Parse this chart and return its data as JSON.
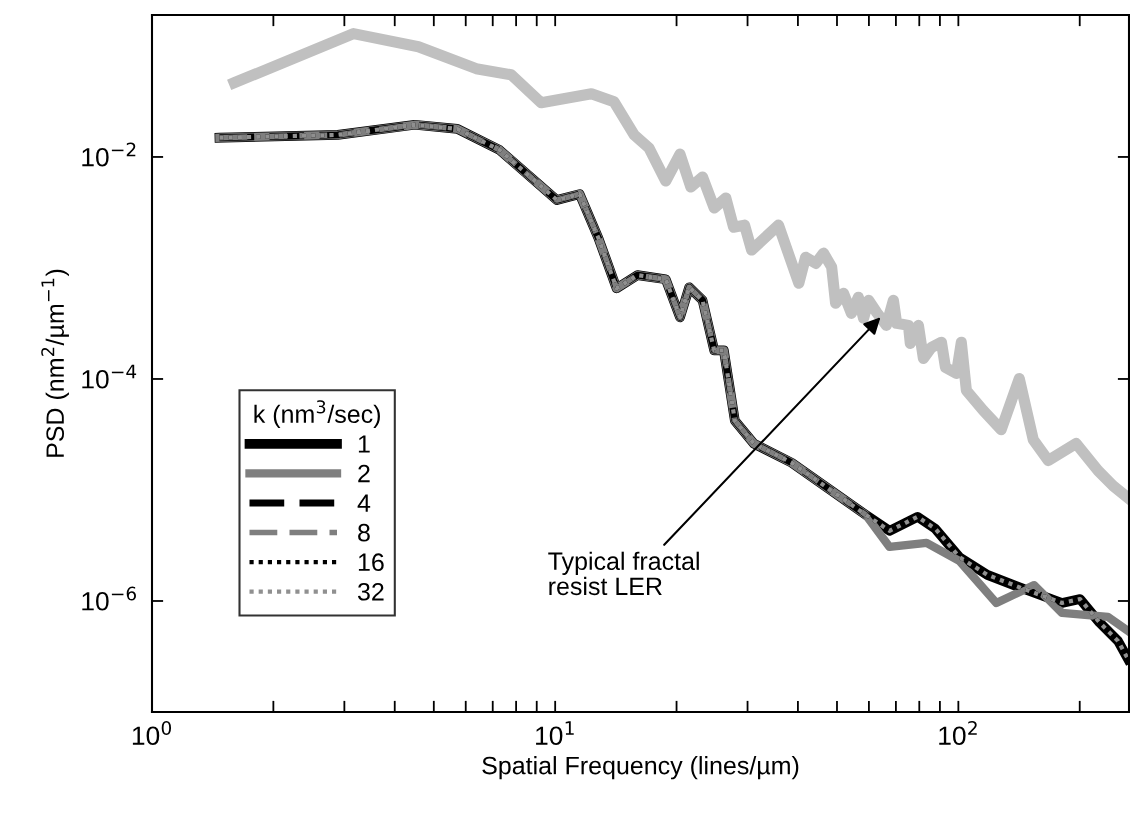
{
  "chart_data": {
    "type": "line",
    "xlabel": "Spatial Frequency (lines/µm)",
    "ylabel": "PSD (nm$^{2}$/µm$^{−1}$)",
    "legend_title": "k (nm$^{3}$/sec)",
    "log": "xy",
    "grid": false,
    "legend": "center left",
    "marker": "none",
    "xlim": [
      1,
      265
    ],
    "ylim": [
      1e-07,
      0.19
    ],
    "xticks": [
      {
        "value": 1,
        "label": "10$^{0}$"
      },
      {
        "value": 2,
        "label": null
      },
      {
        "value": 3,
        "label": null
      },
      {
        "value": 4,
        "label": null
      },
      {
        "value": 5,
        "label": null
      },
      {
        "value": 6,
        "label": null
      },
      {
        "value": 7,
        "label": null
      },
      {
        "value": 8,
        "label": null
      },
      {
        "value": 9,
        "label": null
      },
      {
        "value": 10,
        "label": "10$^{1}$"
      },
      {
        "value": 20,
        "label": null
      },
      {
        "value": 30,
        "label": null
      },
      {
        "value": 40,
        "label": null
      },
      {
        "value": 50,
        "label": null
      },
      {
        "value": 60,
        "label": null
      },
      {
        "value": 70,
        "label": null
      },
      {
        "value": 80,
        "label": null
      },
      {
        "value": 90,
        "label": null
      },
      {
        "value": 100,
        "label": "10$^{2}$"
      },
      {
        "value": 200,
        "label": null
      }
    ],
    "yticks": [
      {
        "value": 1e-06,
        "label": "10$^{−6}$"
      },
      {
        "value": 0.0001,
        "label": "10$^{−4}$"
      },
      {
        "value": 0.01,
        "label": "10$^{−2}$"
      }
    ],
    "annotations": [
      {
        "text": "Typical fractal\nresist LER",
        "x": 64.1,
        "y": 0.00036
      }
    ],
    "series": [
      {
        "color": "#c0c0c0",
        "line_style": "solid",
        "x": [
          1.6,
          3.16,
          4.58,
          6.37,
          7.78,
          9.23,
          12.3,
          14.0,
          15.7,
          17.1,
          18.8,
          20.4,
          21.7,
          23.2,
          24.8,
          26.5,
          27.7,
          29.5,
          30.7,
          35.8,
          40.2,
          41.8,
          44.3,
          46.3,
          48.5,
          49.6,
          51.9,
          54.3,
          56.5,
          58.2,
          59.9,
          62.7,
          66.3,
          69.0,
          70.3,
          75.2,
          76.0,
          79.6,
          81.9,
          85.7,
          90.8,
          92.9,
          98.9,
          101.7,
          104.7,
          115.3,
          127.7,
          141.6,
          153.4,
          167.1,
          195.9,
          222.2,
          242.1,
          263.6
        ],
        "values": [
          0.0466,
          0.129,
          0.0984,
          0.0624,
          0.055,
          0.0308,
          0.0371,
          0.0314,
          0.0158,
          0.012,
          0.00607,
          0.0106,
          0.00536,
          0.00659,
          0.00347,
          0.00427,
          0.00233,
          0.00243,
          0.00145,
          0.00243,
          0.000728,
          0.00125,
          0.0011,
          0.00136,
          0.00102,
          0.000481,
          0.000592,
          0.00039,
          0.000545,
          0.000352,
          0.000512,
          0.000398,
          0.000304,
          0.000512,
          0.000317,
          0.000304,
          0.000209,
          0.000304,
          0.000153,
          0.000192,
          0.000214,
          0.000127,
          0.000112,
          0.000214,
          7.87e-05,
          5.2e-05,
          3.5e-05,
          0.000101,
          2.84e-05,
          1.84e-05,
          2.62e-05,
          1.49e-05,
          1.09e-05,
          8.5e-06
        ]
      },
      {
        "name": "1",
        "color": "#000000",
        "line_style": "solid",
        "x": [
          1.47,
          2.89,
          4.48,
          5.72,
          7.27,
          10.1,
          11.5,
          12.8,
          14.2,
          16.0,
          18.8,
          20.4,
          21.5,
          23.2,
          24.8,
          26.2,
          27.9,
          31.1,
          38.6,
          58.9,
          67.5,
          79.2,
          87.7,
          100.5,
          118.0,
          145.6,
          180.8,
          200.4,
          223.4,
          248.9,
          263.6
        ],
        "values": [
          0.0149,
          0.0158,
          0.0195,
          0.0179,
          0.0116,
          0.00409,
          0.00463,
          0.00186,
          0.000656,
          0.000861,
          0.000791,
          0.000359,
          0.00067,
          0.000512,
          0.000181,
          0.000181,
          4.22e-05,
          2.62e-05,
          1.76e-05,
          5.98e-06,
          4.29e-06,
          5.73e-06,
          4.47e-06,
          2.49e-06,
          1.72e-06,
          1.28e-06,
          9.6e-07,
          1.04e-06,
          6.46e-07,
          4.36e-07,
          2.99e-07
        ]
      },
      {
        "name": "2",
        "color": "#7f7f7f",
        "line_style": "solid",
        "x": [
          1.47,
          2.89,
          4.48,
          5.72,
          7.27,
          10.1,
          11.5,
          12.8,
          14.2,
          16.0,
          18.8,
          20.4,
          21.5,
          23.2,
          24.8,
          26.2,
          27.9,
          31.1,
          38.6,
          58.9,
          67.5,
          83.4,
          100.5,
          124.2,
          154.2,
          180.8,
          235.0,
          263.6
        ],
        "values": [
          0.0149,
          0.0158,
          0.0195,
          0.0179,
          0.0116,
          0.00409,
          0.00463,
          0.00186,
          0.000656,
          0.000861,
          0.000791,
          0.000359,
          0.00067,
          0.000512,
          0.000181,
          0.000181,
          4.22e-05,
          2.62e-05,
          1.76e-05,
          5.98e-06,
          3.07e-06,
          3.34e-06,
          2.3e-06,
          9.6e-07,
          1.39e-06,
          7.8e-07,
          7.18e-07,
          5.36e-07
        ]
      },
      {
        "name": "4",
        "color": "#000000",
        "line_style": "dashed",
        "x": [
          1.47,
          2.89,
          4.48,
          5.72,
          7.27,
          10.1,
          11.5,
          12.8,
          14.2,
          16.0,
          18.8,
          20.4,
          21.5,
          23.2,
          24.8,
          26.2,
          27.9,
          31.1,
          38.6,
          58.9,
          67.5,
          79.2,
          87.7,
          100.5,
          118.0,
          145.6,
          180.8,
          200.4,
          223.4,
          248.9,
          263.6
        ],
        "values": [
          0.0149,
          0.0158,
          0.0195,
          0.0179,
          0.0116,
          0.00409,
          0.00463,
          0.00186,
          0.000656,
          0.000861,
          0.000791,
          0.000359,
          0.00067,
          0.000512,
          0.000181,
          0.000181,
          4.22e-05,
          2.62e-05,
          1.76e-05,
          5.98e-06,
          4.29e-06,
          5.73e-06,
          4.47e-06,
          2.49e-06,
          1.72e-06,
          1.28e-06,
          9.6e-07,
          1.04e-06,
          6.46e-07,
          4.36e-07,
          2.99e-07
        ]
      },
      {
        "name": "8",
        "color": "#7f7f7f",
        "line_style": "dashed",
        "x": [
          1.47,
          2.89,
          4.48,
          5.72,
          7.27,
          10.1,
          11.5,
          12.8,
          14.2,
          16.0,
          18.8,
          20.4,
          21.5,
          23.2,
          24.8,
          26.2,
          27.9,
          31.1,
          38.6,
          58.9,
          67.5,
          83.4,
          100.5,
          124.2,
          154.2,
          180.8,
          235.0,
          263.6
        ],
        "values": [
          0.0149,
          0.0158,
          0.0195,
          0.0179,
          0.0116,
          0.00409,
          0.00463,
          0.00186,
          0.000656,
          0.000861,
          0.000791,
          0.000359,
          0.00067,
          0.000512,
          0.000181,
          0.000181,
          4.22e-05,
          2.62e-05,
          1.76e-05,
          5.98e-06,
          3.07e-06,
          3.34e-06,
          2.3e-06,
          9.6e-07,
          1.39e-06,
          7.8e-07,
          7.18e-07,
          5.36e-07
        ]
      },
      {
        "name": "16",
        "color": "#000000",
        "line_style": "dotted",
        "x": [
          1.47,
          2.89,
          4.48,
          5.72,
          7.27,
          10.1,
          11.5,
          12.8,
          14.2,
          16.0,
          18.8,
          20.4,
          21.5,
          23.2,
          24.8,
          26.2,
          27.9,
          31.1,
          38.6,
          58.9,
          67.5,
          79.2,
          87.7,
          100.5,
          118.0,
          145.6,
          180.8,
          200.4,
          223.4,
          248.9,
          263.6
        ],
        "values": [
          0.0149,
          0.0158,
          0.0195,
          0.0179,
          0.0116,
          0.00409,
          0.00463,
          0.00186,
          0.000656,
          0.000861,
          0.000791,
          0.000359,
          0.00067,
          0.000512,
          0.000181,
          0.000181,
          4.22e-05,
          2.62e-05,
          1.76e-05,
          5.98e-06,
          4.29e-06,
          5.73e-06,
          4.47e-06,
          2.49e-06,
          1.72e-06,
          1.28e-06,
          9.6e-07,
          1.04e-06,
          6.46e-07,
          4.36e-07,
          2.99e-07
        ]
      },
      {
        "name": "32",
        "color": "#909090",
        "line_style": "dotted",
        "x": [
          1.47,
          2.89,
          4.48,
          5.72,
          7.27,
          10.1,
          11.5,
          12.8,
          14.2,
          16.0,
          18.8,
          20.4,
          21.5,
          23.2,
          24.8,
          26.2,
          27.9,
          31.1,
          38.6,
          58.9,
          67.5,
          79.2,
          87.7,
          100.5,
          118.0,
          145.6,
          180.8,
          200.4,
          223.4,
          248.9,
          263.6
        ],
        "values": [
          0.0149,
          0.0158,
          0.0195,
          0.0179,
          0.0116,
          0.00409,
          0.00463,
          0.00186,
          0.000656,
          0.000861,
          0.000791,
          0.000359,
          0.00067,
          0.000512,
          0.000181,
          0.000181,
          4.22e-05,
          2.62e-05,
          1.76e-05,
          5.98e-06,
          4.29e-06,
          5.73e-06,
          4.47e-06,
          2.49e-06,
          1.72e-06,
          1.28e-06,
          9.6e-07,
          1.04e-06,
          6.46e-07,
          4.36e-07,
          2.99e-07
        ]
      }
    ]
  }
}
